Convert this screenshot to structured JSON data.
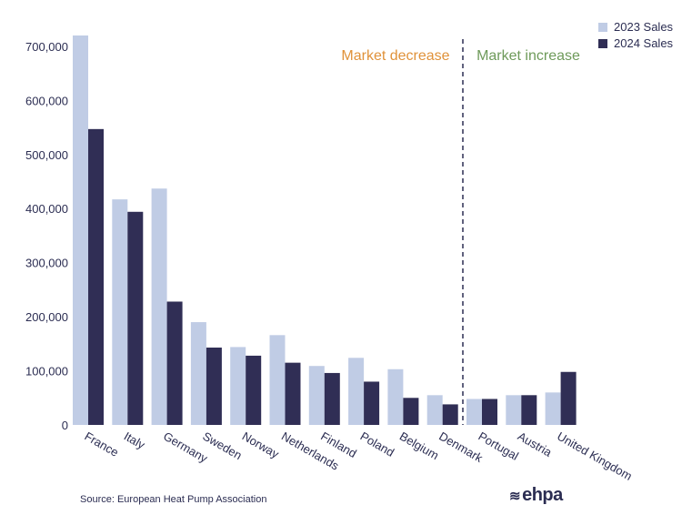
{
  "chart_data": {
    "type": "bar",
    "categories": [
      "France",
      "Italy",
      "Germany",
      "Sweden",
      "Norway",
      "Netherlands",
      "Finland",
      "Poland",
      "Belgium",
      "Denmark",
      "Portugal",
      "Austria",
      "United Kingdom"
    ],
    "series": [
      {
        "name": "2023 Sales",
        "color": "#c0cce5",
        "values": [
          720000,
          417000,
          437000,
          190000,
          144000,
          166000,
          109000,
          124000,
          103000,
          55000,
          48000,
          55000,
          60000
        ]
      },
      {
        "name": "2024 Sales",
        "color": "#302e55",
        "values": [
          547000,
          394000,
          228000,
          143000,
          128000,
          115000,
          96000,
          80000,
          50000,
          38000,
          48000,
          55000,
          98000
        ]
      }
    ],
    "ylim": [
      0,
      720000
    ],
    "yticks": [
      0,
      100000,
      200000,
      300000,
      400000,
      500000,
      600000,
      700000
    ],
    "ytick_labels": [
      "0",
      "100,000",
      "200,000",
      "300,000",
      "400,000",
      "500,000",
      "600,000",
      "700,000"
    ],
    "legend_position": "top-right",
    "grid": false,
    "annotations": {
      "decrease": {
        "text": "Market decrease",
        "color": "#e0923a"
      },
      "increase": {
        "text": "Market increase",
        "color": "#6e9a5a"
      },
      "divider_after_category": "Denmark"
    }
  },
  "source": "Source: European Heat Pump Association",
  "logo": {
    "text": "ehpa",
    "icon": "wave-icon"
  }
}
